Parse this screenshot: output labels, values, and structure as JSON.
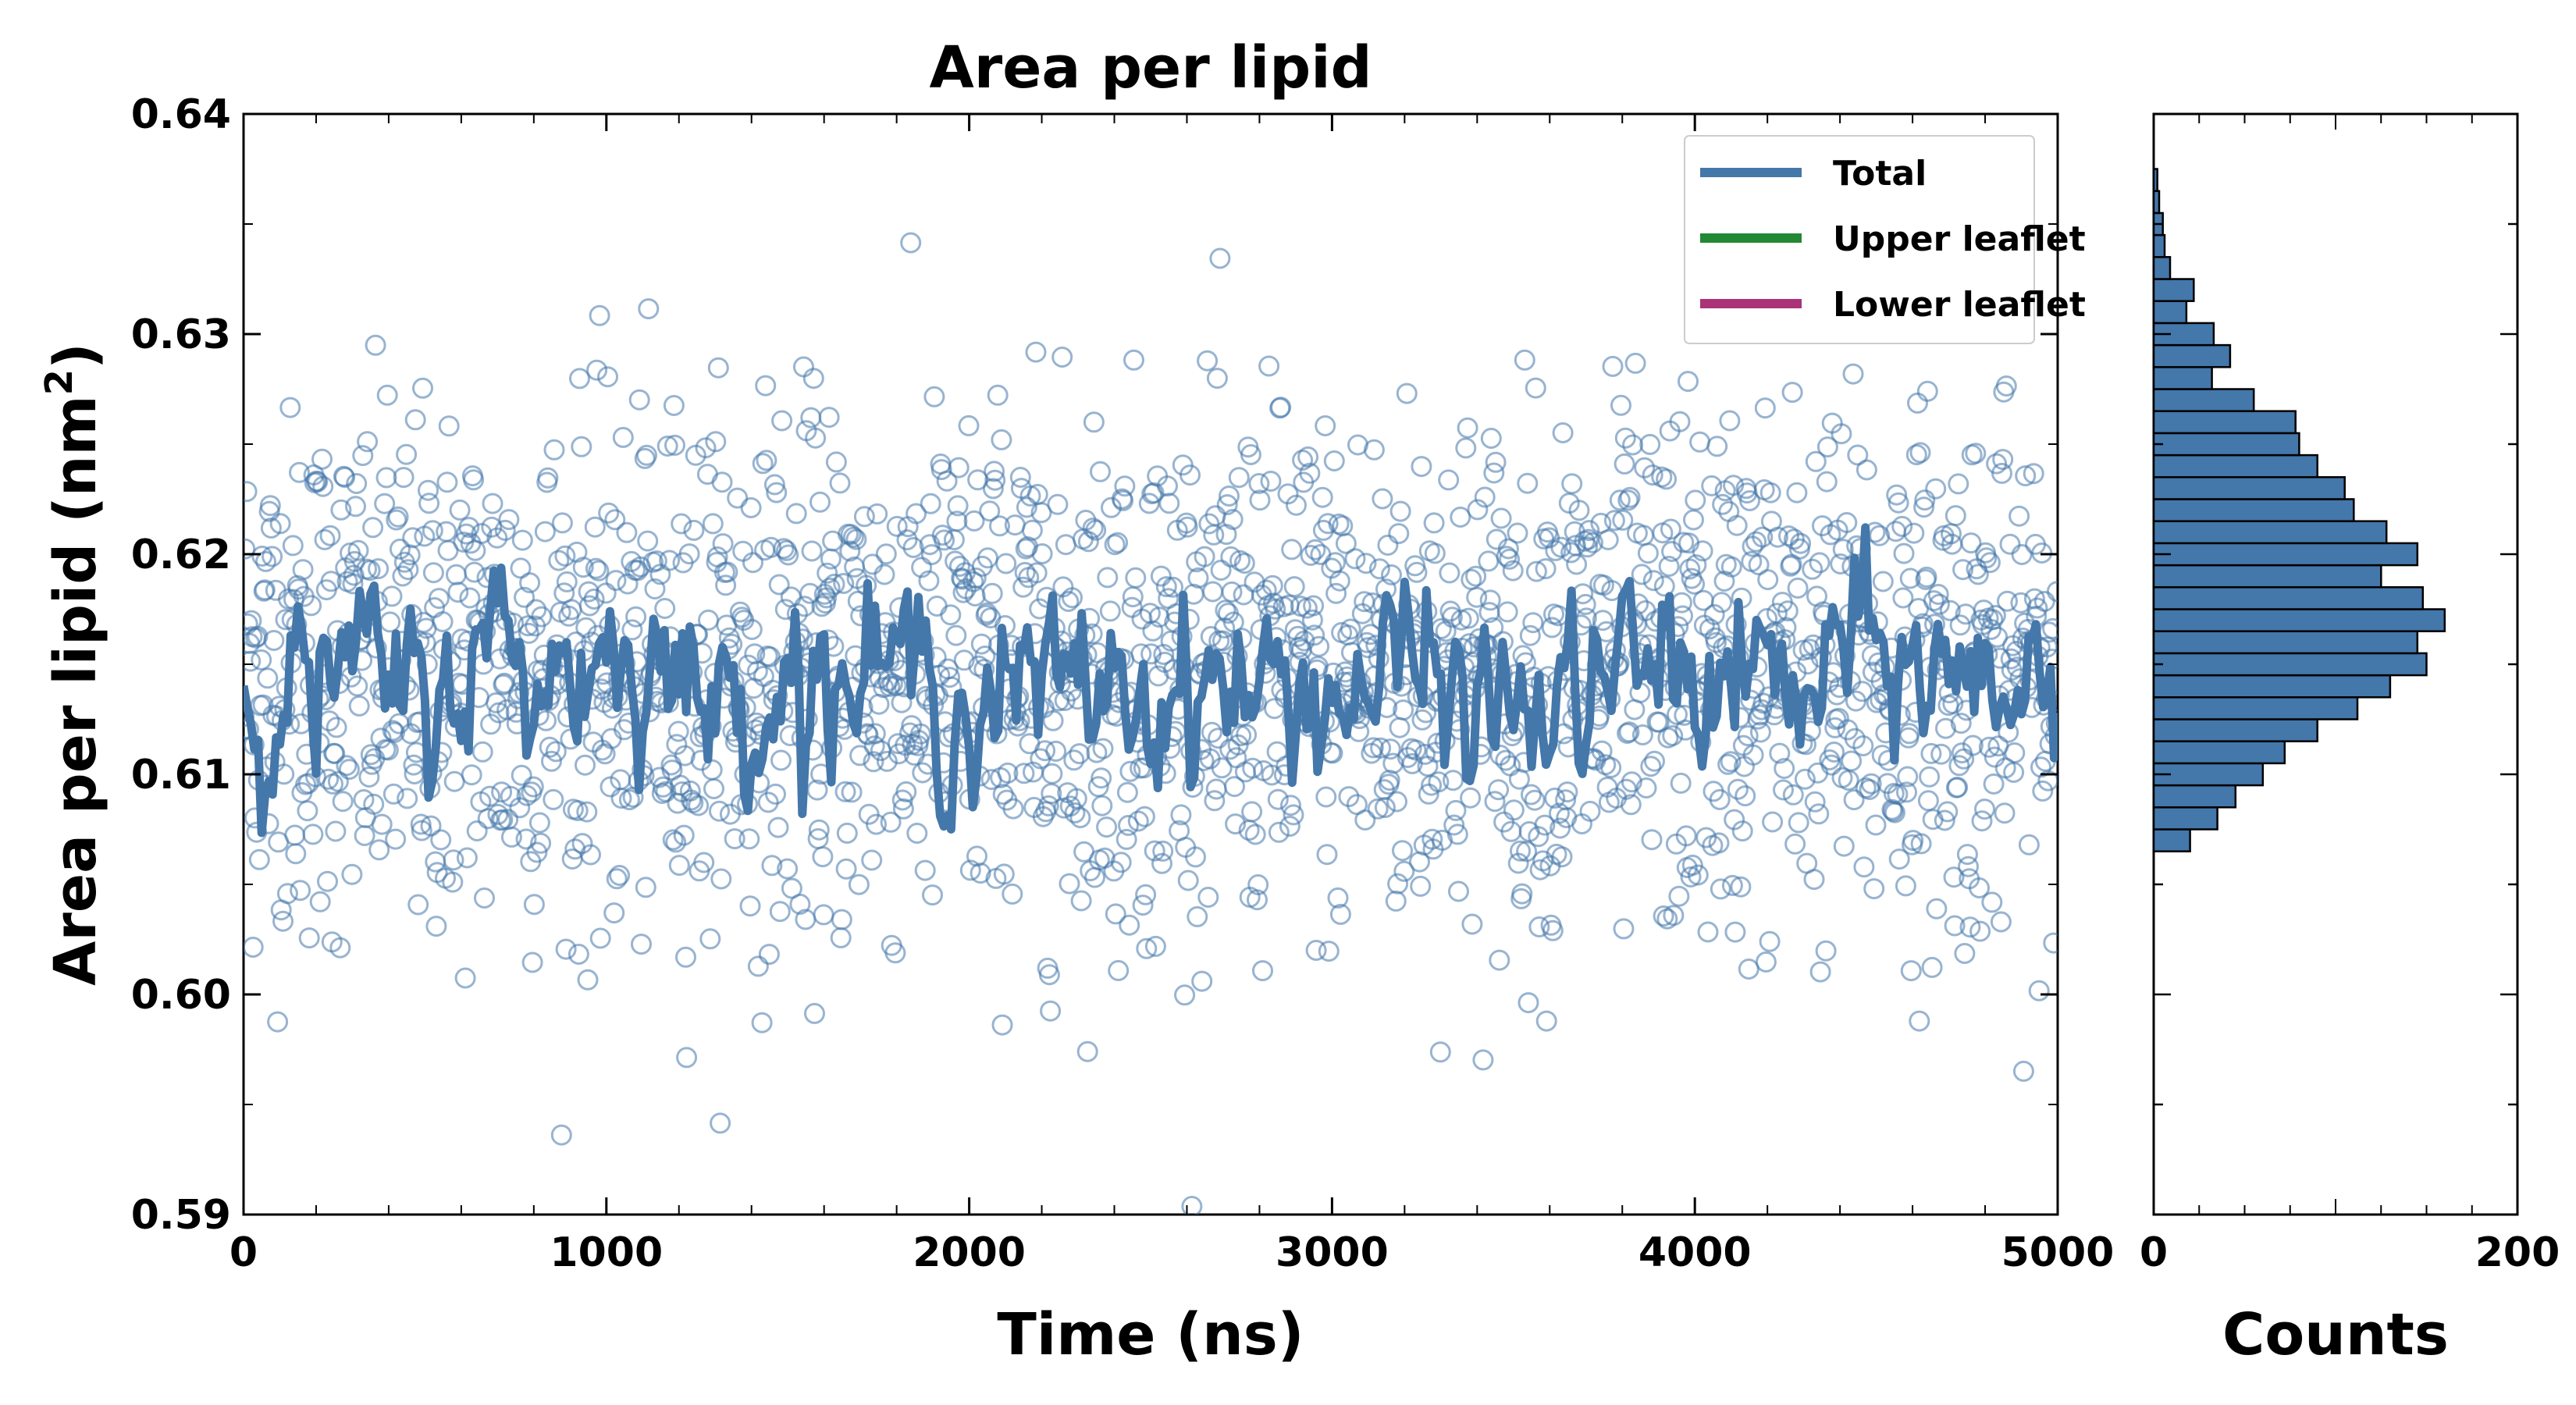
{
  "chart_data": [
    {
      "type": "scatter",
      "title": "Area per lipid",
      "xlabel": "Time (ns)",
      "ylabel": "Area per lipid (nm",
      "ylabel_sup": "2",
      "ylabel_end": ")",
      "xlim": [
        0,
        5000
      ],
      "ylim": [
        0.59,
        0.64
      ],
      "x_ticks": [
        0,
        1000,
        2000,
        3000,
        4000,
        5000
      ],
      "x_tick_labels": [
        "0",
        "1000",
        "2000",
        "3000",
        "4000",
        "5000"
      ],
      "y_ticks": [
        0.59,
        0.6,
        0.61,
        0.62,
        0.63,
        0.64
      ],
      "y_tick_labels": [
        "0.59",
        "0.60",
        "0.61",
        "0.62",
        "0.63",
        "0.64"
      ],
      "grid": false,
      "legend_position": "top-right",
      "series": [
        {
          "name": "Total",
          "kind": "scatter+running-mean",
          "color": "#4477aa",
          "point_style": "hollow-circle",
          "n_points": 2000,
          "mean": 0.6145,
          "std": 0.006,
          "running_mean": [
            [
              0,
              0.6125
            ],
            [
              100,
              0.615
            ],
            [
              200,
              0.6135
            ],
            [
              300,
              0.615
            ],
            [
              400,
              0.614
            ],
            [
              500,
              0.613
            ],
            [
              600,
              0.615
            ],
            [
              700,
              0.616
            ],
            [
              800,
              0.6145
            ],
            [
              900,
              0.615
            ],
            [
              1000,
              0.6155
            ],
            [
              1100,
              0.616
            ],
            [
              1200,
              0.614
            ],
            [
              1300,
              0.613
            ],
            [
              1400,
              0.614
            ],
            [
              1500,
              0.6145
            ],
            [
              1600,
              0.6145
            ],
            [
              1700,
              0.614
            ],
            [
              1800,
              0.615
            ],
            [
              1900,
              0.614
            ],
            [
              2000,
              0.613
            ],
            [
              2100,
              0.614
            ],
            [
              2200,
              0.6135
            ],
            [
              2300,
              0.614
            ],
            [
              2400,
              0.6145
            ],
            [
              2500,
              0.613
            ],
            [
              2600,
              0.6145
            ],
            [
              2700,
              0.614
            ],
            [
              2800,
              0.6135
            ],
            [
              2900,
              0.614
            ],
            [
              3000,
              0.6135
            ],
            [
              3100,
              0.614
            ],
            [
              3200,
              0.615
            ],
            [
              3300,
              0.614
            ],
            [
              3400,
              0.613
            ],
            [
              3500,
              0.613
            ],
            [
              3600,
              0.6125
            ],
            [
              3700,
              0.614
            ],
            [
              3800,
              0.6145
            ],
            [
              3900,
              0.615
            ],
            [
              4000,
              0.614
            ],
            [
              4100,
              0.6145
            ],
            [
              4200,
              0.6145
            ],
            [
              4300,
              0.613
            ],
            [
              4400,
              0.6155
            ],
            [
              4500,
              0.615
            ],
            [
              4600,
              0.615
            ],
            [
              4700,
              0.6145
            ],
            [
              4800,
              0.614
            ],
            [
              4900,
              0.6145
            ],
            [
              5000,
              0.615
            ]
          ]
        },
        {
          "name": "Upper leaflet",
          "kind": "line",
          "color": "#228833"
        },
        {
          "name": "Lower leaflet",
          "kind": "line",
          "color": "#aa3377"
        }
      ]
    },
    {
      "type": "bar",
      "orientation": "horizontal",
      "xlabel": "Counts",
      "xlim": [
        0,
        200
      ],
      "x_ticks": [
        0,
        200
      ],
      "x_tick_labels": [
        "0",
        "200"
      ],
      "ylim": [
        0.59,
        0.64
      ],
      "color": "#4477aa",
      "bin_width": 0.001,
      "bins": [
        [
          0.6065,
          0.6075,
          20
        ],
        [
          0.6075,
          0.6085,
          35
        ],
        [
          0.6085,
          0.6095,
          45
        ],
        [
          0.6095,
          0.6105,
          60
        ],
        [
          0.6105,
          0.6115,
          72
        ],
        [
          0.6115,
          0.6125,
          90
        ],
        [
          0.6125,
          0.6135,
          112
        ],
        [
          0.6135,
          0.6145,
          130
        ],
        [
          0.6145,
          0.6155,
          150
        ],
        [
          0.6155,
          0.6165,
          145
        ],
        [
          0.6165,
          0.6175,
          160
        ],
        [
          0.6175,
          0.6185,
          148
        ],
        [
          0.6185,
          0.6195,
          125
        ],
        [
          0.6195,
          0.6205,
          145
        ],
        [
          0.6205,
          0.6215,
          128
        ],
        [
          0.6215,
          0.6225,
          110
        ],
        [
          0.6225,
          0.6235,
          105
        ],
        [
          0.6235,
          0.6245,
          90
        ],
        [
          0.6245,
          0.6255,
          80
        ],
        [
          0.6255,
          0.6265,
          78
        ],
        [
          0.6265,
          0.6275,
          55
        ],
        [
          0.6275,
          0.6285,
          32
        ],
        [
          0.6285,
          0.6295,
          42
        ],
        [
          0.6295,
          0.6305,
          33
        ],
        [
          0.6305,
          0.6315,
          18
        ],
        [
          0.6315,
          0.6325,
          22
        ],
        [
          0.6325,
          0.6335,
          9
        ],
        [
          0.6335,
          0.6345,
          6
        ],
        [
          0.6345,
          0.6355,
          5
        ],
        [
          0.6355,
          0.6365,
          3
        ],
        [
          0.6365,
          0.6375,
          2
        ]
      ]
    }
  ]
}
